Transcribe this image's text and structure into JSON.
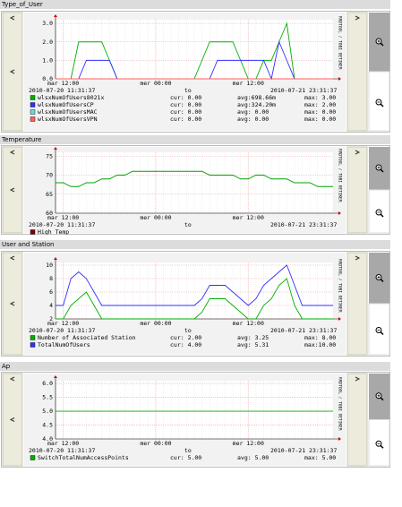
{
  "chart_data": [
    {
      "type": "line",
      "title": "Type_of_User",
      "categories": [
        null,
        "mar 12:00",
        null,
        null,
        null,
        null,
        null,
        null,
        null,
        null,
        null,
        null,
        null,
        "mer 00:00",
        null,
        null,
        null,
        null,
        null,
        null,
        null,
        null,
        null,
        null,
        null,
        "mer 12:00",
        null,
        null,
        null,
        null,
        null,
        null,
        null,
        null,
        null,
        null,
        null
      ],
      "ylim": [
        0,
        3.2
      ],
      "yticks": [
        {
          "value": 0,
          "label": "0.0"
        },
        {
          "value": 1,
          "label": "1.0"
        },
        {
          "value": 2,
          "label": "2.0"
        },
        {
          "value": 3,
          "label": "3.0"
        }
      ],
      "grid": true,
      "start": "2010-07-20 11:31:37",
      "to": "to",
      "end": "2010-07-21 23:31:37",
      "watermark": "RRDTOOL / TOBI OETIKER",
      "series": [
        {
          "name": "wlsxNumOfUsers8021x",
          "color": "#00b000",
          "stats": [
            "cur: 0.00",
            "avg:698.66m",
            "max: 3.00"
          ],
          "values": [
            0,
            0,
            0,
            2,
            2,
            2,
            2,
            1,
            0,
            0,
            0,
            0,
            0,
            0,
            0,
            0,
            0,
            0,
            0,
            1,
            2,
            2,
            2,
            2,
            1,
            0,
            0,
            1,
            1,
            2,
            3,
            0,
            0,
            0,
            0,
            0,
            0
          ]
        },
        {
          "name": "wlsxNumOfUsersCP",
          "color": "#3030ff",
          "stats": [
            "cur: 0.00",
            "avg:324.20m",
            "max: 2.00"
          ],
          "values": [
            0,
            0,
            0,
            0,
            1,
            1,
            1,
            1,
            0,
            0,
            0,
            0,
            0,
            0,
            0,
            0,
            0,
            0,
            0,
            0,
            0,
            1,
            1,
            1,
            1,
            1,
            1,
            1,
            0,
            2,
            1,
            0,
            0,
            0,
            0,
            0,
            0
          ]
        },
        {
          "name": "wlsxNumOfUsersMAC",
          "color": "#70d8d8",
          "stats": [
            "cur: 0.00",
            "avg: 0.00",
            "max: 0.00"
          ],
          "values": [
            0,
            0,
            0,
            0,
            0,
            0,
            0,
            0,
            0,
            0,
            0,
            0,
            0,
            0,
            0,
            0,
            0,
            0,
            0,
            0,
            0,
            0,
            0,
            0,
            0,
            0,
            0,
            0,
            0,
            0,
            0,
            0,
            0,
            0,
            0,
            0,
            0
          ]
        },
        {
          "name": "wlsxNumOfUsersVPN",
          "color": "#ff6060",
          "stats": [
            "cur: 0.00",
            "avg: 0.00",
            "max: 0.00"
          ],
          "values": [
            0,
            0,
            0,
            0,
            0,
            0,
            0,
            0,
            0,
            0,
            0,
            0,
            0,
            0,
            0,
            0,
            0,
            0,
            0,
            0,
            0,
            0,
            0,
            0,
            0,
            0,
            0,
            0,
            0,
            0,
            0,
            0,
            0,
            0,
            0,
            0,
            0
          ]
        }
      ]
    },
    {
      "type": "line",
      "title": "Temperature",
      "categories": [
        null,
        "mar 12:00",
        null,
        null,
        null,
        null,
        null,
        null,
        null,
        null,
        null,
        null,
        null,
        "mer 00:00",
        null,
        null,
        null,
        null,
        null,
        null,
        null,
        null,
        null,
        null,
        null,
        "mer 12:00",
        null,
        null,
        null,
        null,
        null,
        null,
        null,
        null,
        null,
        null,
        null
      ],
      "ylim": [
        60,
        76
      ],
      "yticks": [
        60,
        65,
        70,
        75
      ],
      "grid": true,
      "start": "2010-07-20 11:31:37",
      "to": "to",
      "end": "2010-07-21 23:31:37",
      "watermark": "RRDTOOL / TOBI OETIKER",
      "series": [
        {
          "name": "High Temp",
          "color": "#00a000",
          "legend_color": "#800000",
          "values": [
            68,
            68,
            67,
            67,
            68,
            68,
            69,
            69,
            70,
            70,
            71,
            71,
            71,
            71,
            71,
            71,
            71,
            71,
            71,
            71,
            70,
            70,
            70,
            70,
            69,
            69,
            70,
            70,
            69,
            69,
            69,
            68,
            68,
            68,
            67,
            67,
            67
          ]
        }
      ]
    },
    {
      "type": "line",
      "title": "User and Station",
      "categories": [
        null,
        "mar 12:00",
        null,
        null,
        null,
        null,
        null,
        null,
        null,
        null,
        null,
        null,
        null,
        "mer 00:00",
        null,
        null,
        null,
        null,
        null,
        null,
        null,
        null,
        null,
        null,
        null,
        "mer 12:00",
        null,
        null,
        null,
        null,
        null,
        null,
        null,
        null,
        null,
        null,
        null
      ],
      "ylim": [
        2,
        10.4
      ],
      "yticks": [
        2,
        4,
        6,
        8,
        10
      ],
      "grid": true,
      "start": "2010-07-20 11:31:37",
      "to": "to",
      "end": "2010-07-21 23:31:37",
      "watermark": "RRDTOOL / TOBI OETIKER",
      "series": [
        {
          "name": "Number of Associated Station",
          "color": "#00b000",
          "stats": [
            "cur: 2.00",
            "avg: 3.25",
            "max: 8.00"
          ],
          "values": [
            2,
            2,
            4,
            5,
            6,
            4,
            2,
            2,
            2,
            2,
            2,
            2,
            2,
            2,
            2,
            2,
            2,
            2,
            2,
            3,
            5,
            5,
            5,
            4,
            3,
            2,
            2,
            4,
            5,
            7,
            8,
            4,
            2,
            2,
            2,
            2,
            2
          ]
        },
        {
          "name": "TotalNumOfUsers",
          "color": "#3030ff",
          "stats": [
            "cur: 4.00",
            "avg: 5.31",
            "max:10.00"
          ],
          "values": [
            4,
            4,
            8,
            9,
            8,
            6,
            4,
            4,
            4,
            4,
            4,
            4,
            4,
            4,
            4,
            4,
            4,
            4,
            4,
            5,
            7,
            7,
            7,
            6,
            5,
            4,
            5,
            7,
            8,
            9,
            10,
            7,
            4,
            4,
            4,
            4,
            4
          ]
        }
      ]
    },
    {
      "type": "line",
      "title": "Ap",
      "categories": [
        null,
        "mar 12:00",
        null,
        null,
        null,
        null,
        null,
        null,
        null,
        null,
        null,
        null,
        null,
        "mer 00:00",
        null,
        null,
        null,
        null,
        null,
        null,
        null,
        null,
        null,
        null,
        null,
        "mer 12:00",
        null,
        null,
        null,
        null,
        null,
        null,
        null,
        null,
        null,
        null,
        null
      ],
      "ylim": [
        4,
        6.1
      ],
      "yticks": [
        {
          "value": 4,
          "label": "4.0"
        },
        {
          "value": 4.5,
          "label": "4.5"
        },
        {
          "value": 5,
          "label": "5.0"
        },
        {
          "value": 5.5,
          "label": "5.5"
        },
        {
          "value": 6,
          "label": "6.0"
        }
      ],
      "grid": true,
      "start": "2010-07-20 11:31:37",
      "to": "to",
      "end": "2010-07-21 23:31:37",
      "watermark": "RRDTOOL / TOBI OETIKER",
      "series": [
        {
          "name": "SwitchTotalNumAccessPoints",
          "color": "#00b000",
          "stats": [
            "cur: 5.00",
            "avg: 5.00",
            "max: 5.00"
          ],
          "values": [
            5,
            5,
            5,
            5,
            5,
            5,
            5,
            5,
            5,
            5,
            5,
            5,
            5,
            5,
            5,
            5,
            5,
            5,
            5,
            5,
            5,
            5,
            5,
            5,
            5,
            5,
            5,
            5,
            5,
            5,
            5,
            5,
            5,
            5,
            5,
            5,
            5
          ]
        }
      ]
    }
  ]
}
